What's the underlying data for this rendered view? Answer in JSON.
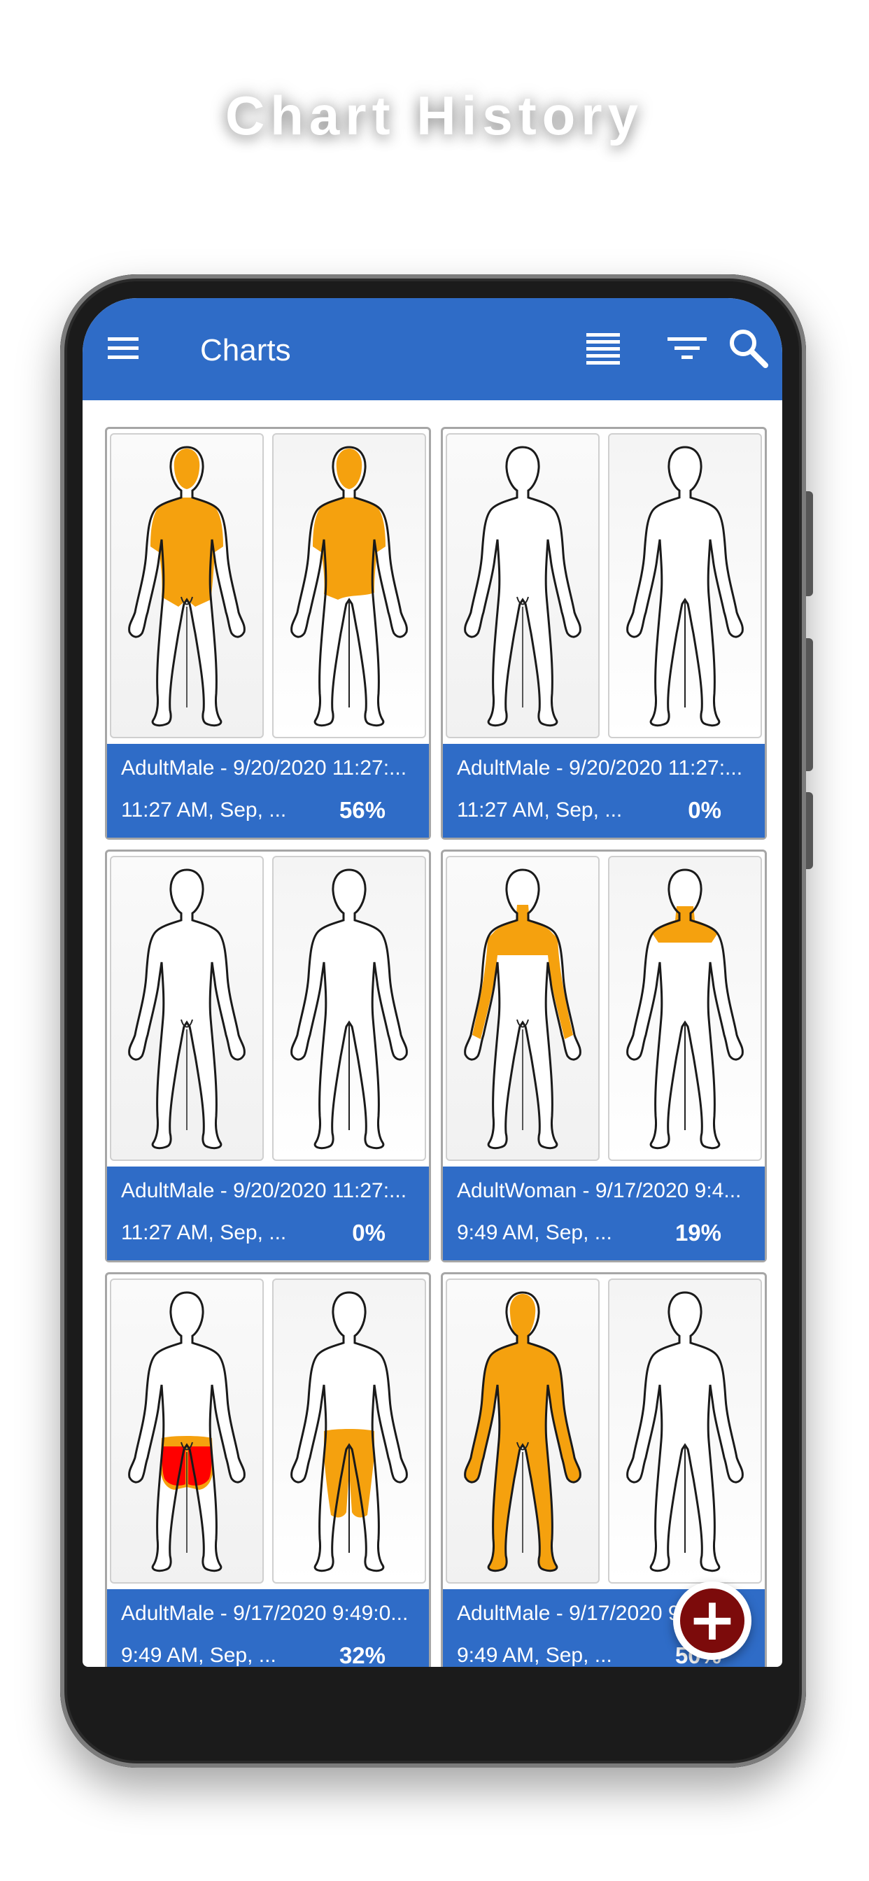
{
  "headline": "Chart History",
  "appbar": {
    "title": "Charts",
    "menu_icon": "menu-icon",
    "list_icon": "list-view-icon",
    "filter_icon": "filter-icon",
    "search_icon": "search-icon",
    "color": "#2f6cc7"
  },
  "colors": {
    "burn_minor": "#f5a10e",
    "burn_severe": "#ff0000",
    "card_bar": "#2f6cc7",
    "fab": "#7c0b0b"
  },
  "charts": [
    {
      "name": "AdultMale - 9/20/2020 11:27:...",
      "time": "11:27 AM, Sep, ...",
      "percent": "56%",
      "front": "torso-arms",
      "back": "torso-back"
    },
    {
      "name": "AdultMale - 9/20/2020 11:27:...",
      "time": "11:27 AM, Sep, ...",
      "percent": "0%",
      "front": "none",
      "back": "none"
    },
    {
      "name": "AdultMale - 9/20/2020 11:27:...",
      "time": "11:27 AM, Sep, ...",
      "percent": "0%",
      "front": "none",
      "back": "none"
    },
    {
      "name": "AdultWoman - 9/17/2020 9:4...",
      "time": "9:49 AM, Sep, ...",
      "percent": "19%",
      "front": "neck-chest-arms",
      "back": "neck-shoulders"
    },
    {
      "name": "AdultMale - 9/17/2020 9:49:0...",
      "time": "9:49 AM, Sep, ...",
      "percent": "32%",
      "front": "thighs-severe",
      "back": "thighs-back"
    },
    {
      "name": "AdultMale - 9/17/2020 9:49:0...",
      "time": "9:49 AM, Sep, ...",
      "percent": "50%",
      "front": "full-front",
      "back": "none"
    }
  ],
  "fab": {
    "icon": "add-icon",
    "glyph": "+"
  }
}
